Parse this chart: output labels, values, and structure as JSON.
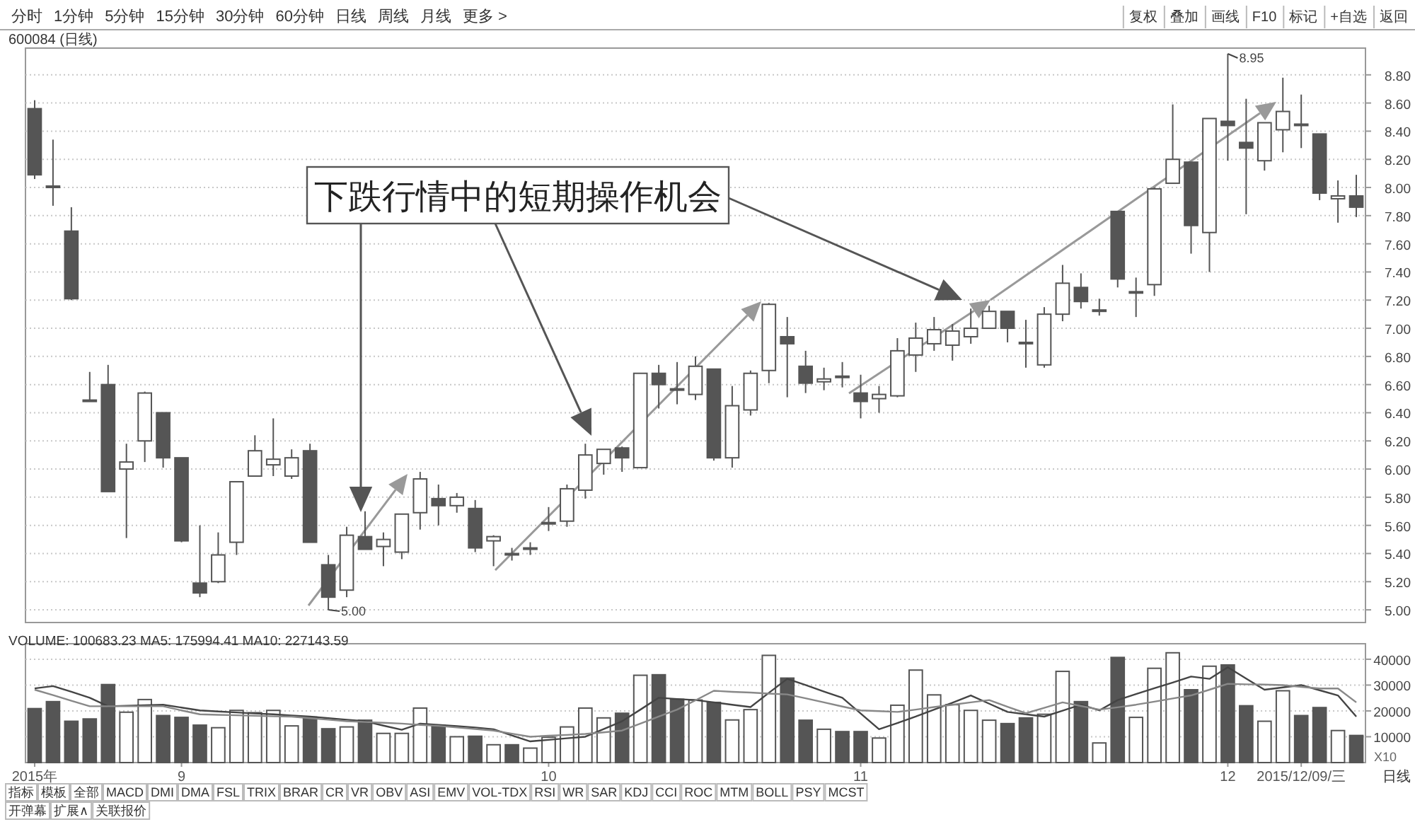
{
  "chart_data": [
    {
      "type": "candlestick",
      "annotations": [
        "分时",
        "1分钟",
        "5分钟",
        "15分钟",
        "30分钟",
        "60分钟",
        "日线",
        "周线",
        "月线",
        "更多 >",
        "复权",
        "叠加",
        "画线",
        "F10",
        "标记",
        "+自选",
        "返回",
        "600084 (日线)",
        "下跌行情中的短期操作机会",
        "8.95",
        "5.00"
      ],
      "categories": [
        null,
        null,
        null,
        null,
        null,
        null,
        null,
        null,
        null,
        null,
        null,
        null,
        null,
        null,
        null,
        null,
        null,
        null,
        null,
        null,
        null,
        null,
        null,
        null,
        null,
        null,
        null,
        null,
        null,
        null,
        null,
        null,
        null,
        null,
        null,
        null,
        null,
        null,
        null,
        null,
        null,
        null,
        null,
        null,
        null,
        null,
        null,
        null,
        null,
        null,
        null,
        null,
        null,
        null,
        null,
        null,
        null,
        null,
        null,
        null,
        null,
        null,
        null,
        null,
        null,
        null,
        null,
        null,
        null,
        null,
        null,
        null,
        null
      ],
      "ohlc": [
        [
          8.56,
          8.62,
          8.06,
          8.09
        ],
        [
          8.01,
          8.34,
          7.87,
          8.0
        ],
        [
          7.69,
          7.86,
          7.2,
          7.21
        ],
        [
          6.49,
          6.69,
          6.48,
          6.48
        ],
        [
          6.6,
          6.74,
          5.84,
          5.84
        ],
        [
          6.0,
          6.18,
          5.51,
          6.05
        ],
        [
          6.2,
          6.55,
          6.05,
          6.54
        ],
        [
          6.4,
          6.4,
          6.01,
          6.08
        ],
        [
          6.08,
          6.08,
          5.48,
          5.49
        ],
        [
          5.19,
          5.6,
          5.09,
          5.12
        ],
        [
          5.2,
          5.55,
          5.19,
          5.39
        ],
        [
          5.48,
          5.91,
          5.39,
          5.91
        ],
        [
          5.95,
          6.24,
          5.95,
          6.13
        ],
        [
          6.03,
          6.36,
          5.95,
          6.07
        ],
        [
          5.95,
          6.14,
          5.93,
          6.08
        ],
        [
          6.13,
          6.18,
          5.48,
          5.48
        ],
        [
          5.32,
          5.39,
          5.0,
          5.09
        ],
        [
          5.14,
          5.59,
          5.09,
          5.53
        ],
        [
          5.52,
          5.7,
          5.43,
          5.43
        ],
        [
          5.45,
          5.55,
          5.31,
          5.5
        ],
        [
          5.41,
          5.68,
          5.36,
          5.68
        ],
        [
          5.69,
          5.98,
          5.57,
          5.93
        ],
        [
          5.79,
          5.89,
          5.6,
          5.74
        ],
        [
          5.74,
          5.83,
          5.69,
          5.8
        ],
        [
          5.72,
          5.78,
          5.41,
          5.44
        ],
        [
          5.49,
          5.53,
          5.31,
          5.52
        ],
        [
          5.4,
          5.44,
          5.35,
          5.4
        ],
        [
          5.43,
          5.48,
          5.39,
          5.44
        ],
        [
          5.61,
          5.73,
          5.56,
          5.62
        ],
        [
          5.63,
          5.89,
          5.59,
          5.86
        ],
        [
          5.85,
          6.18,
          5.79,
          6.1
        ],
        [
          6.04,
          6.14,
          5.96,
          6.14
        ],
        [
          6.15,
          6.16,
          5.98,
          6.08
        ],
        [
          6.01,
          6.68,
          6.01,
          6.68
        ],
        [
          6.68,
          6.74,
          6.43,
          6.6
        ],
        [
          6.57,
          6.76,
          6.46,
          6.57
        ],
        [
          6.53,
          6.8,
          6.49,
          6.73
        ],
        [
          6.71,
          6.71,
          6.06,
          6.08
        ],
        [
          6.08,
          6.59,
          6.01,
          6.45
        ],
        [
          6.42,
          6.7,
          6.38,
          6.68
        ],
        [
          6.7,
          7.18,
          6.61,
          7.17
        ],
        [
          6.94,
          7.08,
          6.51,
          6.89
        ],
        [
          6.73,
          6.84,
          6.54,
          6.61
        ],
        [
          6.62,
          6.72,
          6.56,
          6.64
        ],
        [
          6.65,
          6.76,
          6.58,
          6.66
        ],
        [
          6.54,
          6.67,
          6.36,
          6.48
        ],
        [
          6.5,
          6.59,
          6.4,
          6.53
        ],
        [
          6.52,
          6.93,
          6.51,
          6.84
        ],
        [
          6.81,
          7.04,
          6.69,
          6.93
        ],
        [
          6.89,
          7.08,
          6.84,
          6.99
        ],
        [
          6.88,
          7.03,
          6.77,
          6.98
        ],
        [
          6.94,
          7.14,
          6.89,
          7.0
        ],
        [
          7.0,
          7.16,
          7.0,
          7.12
        ],
        [
          7.12,
          7.12,
          6.9,
          7.0
        ],
        [
          6.9,
          7.06,
          6.72,
          6.9
        ],
        [
          6.74,
          7.15,
          6.72,
          7.1
        ],
        [
          7.1,
          7.45,
          7.05,
          7.32
        ],
        [
          7.29,
          7.39,
          7.14,
          7.19
        ],
        [
          7.13,
          7.21,
          7.09,
          7.13
        ],
        [
          7.83,
          7.83,
          7.29,
          7.35
        ],
        [
          7.25,
          7.36,
          7.08,
          7.26
        ],
        [
          7.31,
          8.0,
          7.23,
          7.99
        ],
        [
          8.03,
          8.59,
          8.03,
          8.2
        ],
        [
          8.18,
          8.18,
          7.53,
          7.73
        ],
        [
          7.68,
          8.49,
          7.4,
          8.49
        ],
        [
          8.47,
          8.95,
          8.19,
          8.44
        ],
        [
          8.32,
          8.63,
          7.81,
          8.28
        ],
        [
          8.19,
          8.46,
          8.12,
          8.46
        ],
        [
          8.41,
          8.78,
          8.25,
          8.54
        ],
        [
          8.45,
          8.66,
          8.28,
          8.44
        ],
        [
          8.38,
          8.38,
          7.91,
          7.96
        ],
        [
          7.92,
          8.05,
          7.75,
          7.94
        ],
        [
          7.94,
          8.09,
          7.79,
          7.86
        ]
      ],
      "ylim": [
        4.91,
        8.99
      ],
      "yticks": [
        {
          "value": 5.0,
          "label": "5.00"
        },
        {
          "value": 5.2,
          "label": "5.20"
        },
        {
          "value": 5.4,
          "label": "5.40"
        },
        {
          "value": 5.6,
          "label": "5.60"
        },
        {
          "value": 5.8,
          "label": "5.80"
        },
        {
          "value": 6.0,
          "label": "6.00"
        },
        {
          "value": 6.2,
          "label": "6.20"
        },
        {
          "value": 6.4,
          "label": "6.40"
        },
        {
          "value": 6.6,
          "label": "6.60"
        },
        {
          "value": 6.8,
          "label": "6.80"
        },
        {
          "value": 7.0,
          "label": "7.00"
        },
        {
          "value": 7.2,
          "label": "7.20"
        },
        {
          "value": 7.4,
          "label": "7.40"
        },
        {
          "value": 7.6,
          "label": "7.60"
        },
        {
          "value": 7.8,
          "label": "7.80"
        },
        {
          "value": 8.0,
          "label": "8.00"
        },
        {
          "value": 8.2,
          "label": "8.20"
        },
        {
          "value": 8.4,
          "label": "8.40"
        },
        {
          "value": 8.6,
          "label": "8.60"
        },
        {
          "value": 8.8,
          "label": "8.80"
        }
      ],
      "grid": "y",
      "tick_labels": "y"
    },
    {
      "type": "bar",
      "title": "VOLUME: 100683.23 MA5: 175994.41 MA10: 227143.59",
      "annotations": [
        "X10",
        "日线",
        "指标",
        "模板",
        "全部",
        "MACD",
        "DMI",
        "DMA",
        "FSL",
        "TRIX",
        "BRAR",
        "CR",
        "VR",
        "OBV",
        "ASI",
        "EMV",
        "VOL-TDX",
        "RSI",
        "WR",
        "SAR",
        "KDJ",
        "CCI",
        "ROC",
        "MTM",
        "BOLL",
        "PSY",
        "MCST",
        "开弹幕",
        "扩展∧",
        "关联报价"
      ],
      "categories": [
        "2015年",
        null,
        null,
        null,
        null,
        null,
        null,
        null,
        "9",
        null,
        null,
        null,
        null,
        null,
        null,
        null,
        null,
        null,
        null,
        null,
        null,
        null,
        null,
        null,
        null,
        null,
        null,
        null,
        "10",
        null,
        null,
        null,
        null,
        null,
        null,
        null,
        null,
        null,
        null,
        null,
        null,
        null,
        null,
        null,
        null,
        "11",
        null,
        null,
        null,
        null,
        null,
        null,
        null,
        null,
        null,
        null,
        null,
        null,
        null,
        null,
        null,
        null,
        null,
        null,
        null,
        "12",
        null,
        null,
        null,
        "2015/12/09/三",
        null,
        null,
        null
      ],
      "series": [
        {
          "type": "bar",
          "values": [
            20900,
            23600,
            16000,
            16900,
            30200,
            19500,
            24400,
            18200,
            17500,
            14500,
            13500,
            20200,
            19300,
            20200,
            14200,
            17600,
            13100,
            13800,
            16400,
            11300,
            11300,
            21100,
            14400,
            10000,
            10200,
            6900,
            6900,
            5600,
            9800,
            13800,
            21100,
            17300,
            19100,
            33800,
            34000,
            24500,
            24200,
            23300,
            16500,
            20500,
            41500,
            32700,
            16400,
            12900,
            12000,
            12000,
            9500,
            22200,
            35800,
            26200,
            22400,
            20200,
            16400,
            15100,
            17300,
            18700,
            35300,
            23600,
            7600,
            40700,
            17500,
            36500,
            42500,
            28200,
            37300,
            37800,
            22000,
            16000,
            27800,
            18200,
            21300,
            12400,
            10500
          ],
          "colors": [
            "#555555",
            "#555555",
            "#555555",
            "#555555",
            "#555555",
            "#ffffff",
            "#ffffff",
            "#555555",
            "#555555",
            "#555555",
            "#ffffff",
            "#ffffff",
            "#ffffff",
            "#ffffff",
            "#ffffff",
            "#555555",
            "#555555",
            "#ffffff",
            "#555555",
            "#ffffff",
            "#ffffff",
            "#ffffff",
            "#555555",
            "#ffffff",
            "#555555",
            "#ffffff",
            "#555555",
            "#ffffff",
            "#ffffff",
            "#ffffff",
            "#ffffff",
            "#ffffff",
            "#555555",
            "#ffffff",
            "#555555",
            "#555555",
            "#ffffff",
            "#555555",
            "#ffffff",
            "#ffffff",
            "#ffffff",
            "#555555",
            "#555555",
            "#ffffff",
            "#555555",
            "#555555",
            "#ffffff",
            "#ffffff",
            "#ffffff",
            "#ffffff",
            "#ffffff",
            "#ffffff",
            "#ffffff",
            "#555555",
            "#555555",
            "#ffffff",
            "#ffffff",
            "#555555",
            "#ffffff",
            "#555555",
            "#ffffff",
            "#ffffff",
            "#ffffff",
            "#555555",
            "#ffffff",
            "#555555",
            "#555555",
            "#ffffff",
            "#ffffff",
            "#555555",
            "#555555",
            "#ffffff",
            "#555555"
          ]
        },
        {
          "type": "line",
          "color": "#444444",
          "values": [
            28700,
            29600,
            27400,
            25100,
            21800,
            22000,
            22200,
            22400,
            21300,
            20200,
            19800,
            19400,
            19000,
            18700,
            18200,
            17800,
            17200,
            16600,
            16000,
            14300,
            12700,
            15100,
            14600,
            14100,
            13600,
            12900,
            10500,
            8200,
            8800,
            9400,
            10000,
            13000,
            16000,
            20500,
            25100,
            24600,
            24200,
            23300,
            22400,
            21500,
            27000,
            32400,
            30000,
            27500,
            25100,
            19000,
            12900,
            15300,
            17800,
            20500,
            23200,
            26000,
            22800,
            19600,
            18700,
            17800,
            20100,
            22400,
            20200,
            24200,
            26500,
            28800,
            31000,
            33300,
            32400,
            36900,
            32500,
            28200,
            29100,
            30000,
            28000,
            26000,
            17800
          ]
        },
        {
          "type": "line",
          "color": "#888888",
          "values": [
            28200,
            26100,
            23900,
            21800,
            21800,
            21800,
            21800,
            21800,
            20200,
            18700,
            18500,
            18300,
            18100,
            17900,
            17800,
            17200,
            16600,
            16000,
            15700,
            15400,
            15100,
            14600,
            14200,
            13600,
            13000,
            12400,
            11200,
            10000,
            10400,
            10700,
            11100,
            11700,
            12400,
            15100,
            17800,
            20500,
            24100,
            27800,
            27400,
            27100,
            26700,
            26400,
            24900,
            23300,
            21700,
            20200,
            19900,
            19600,
            20500,
            21500,
            22400,
            23300,
            24200,
            21600,
            19100,
            21200,
            23300,
            21900,
            20500,
            21400,
            22400,
            23600,
            24800,
            26000,
            28200,
            30500,
            30300,
            30200,
            30000,
            29300,
            28700,
            28700,
            23300
          ]
        }
      ],
      "ylim": [
        0,
        46000
      ],
      "yticks": [
        10000,
        20000,
        30000,
        40000
      ],
      "grid": "y"
    }
  ]
}
